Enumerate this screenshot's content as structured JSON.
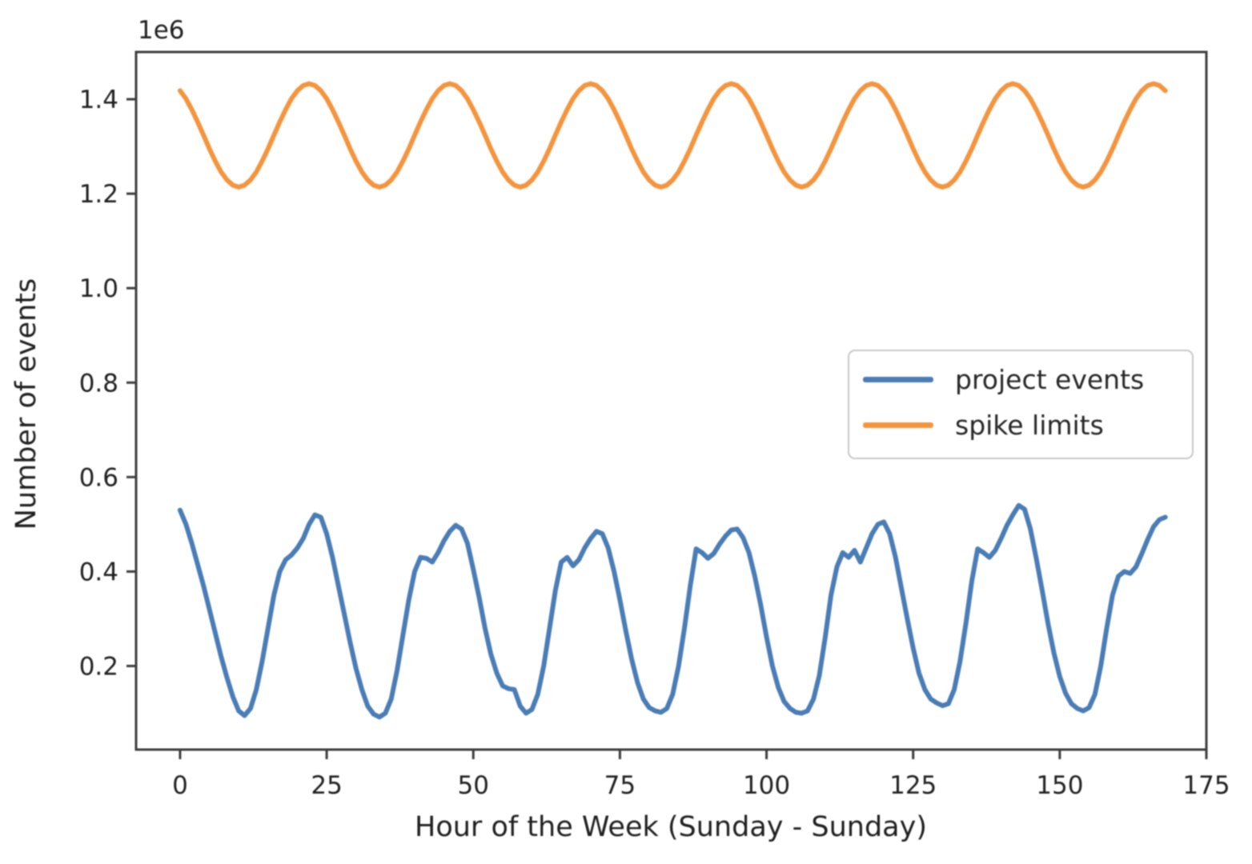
{
  "figure": {
    "offset_label": "1e6",
    "xlabel": "Hour of the Week (Sunday - Sunday)",
    "ylabel": "Number of events"
  },
  "legend": {
    "items": [
      {
        "label": "project events",
        "color": "#4a7db5"
      },
      {
        "label": "spike limits",
        "color": "#f3953f"
      }
    ]
  },
  "chart_data": {
    "type": "line",
    "title": "",
    "xlabel": "Hour of the Week (Sunday - Sunday)",
    "ylabel": "Number of events",
    "y_axis_offset_text": "1e6",
    "y_unit": "millions of events (axis shows value x 1e6)",
    "grid": false,
    "legend_position": "center right",
    "xlim": [
      -7.5,
      175
    ],
    "ylim": [
      0.023,
      1.5
    ],
    "x_ticks": [
      0,
      25,
      50,
      75,
      100,
      125,
      150,
      175
    ],
    "y_tick_values": [
      0.2,
      0.4,
      0.6,
      0.8,
      1.0,
      1.2,
      1.4
    ],
    "y_tick_labels": [
      "0.2",
      "0.4",
      "0.6",
      "0.8",
      "1.0",
      "1.2",
      "1.4"
    ],
    "x_start": 0,
    "x_step": 1,
    "series": [
      {
        "name": "project events",
        "color": "#4a7db5",
        "values": [
          0.53,
          0.5,
          0.46,
          0.415,
          0.37,
          0.32,
          0.27,
          0.22,
          0.175,
          0.135,
          0.105,
          0.095,
          0.11,
          0.15,
          0.21,
          0.28,
          0.35,
          0.4,
          0.425,
          0.435,
          0.45,
          0.47,
          0.5,
          0.52,
          0.515,
          0.48,
          0.43,
          0.37,
          0.31,
          0.25,
          0.195,
          0.15,
          0.115,
          0.098,
          0.092,
          0.1,
          0.13,
          0.19,
          0.265,
          0.34,
          0.4,
          0.43,
          0.428,
          0.42,
          0.44,
          0.465,
          0.485,
          0.498,
          0.49,
          0.46,
          0.405,
          0.345,
          0.28,
          0.225,
          0.185,
          0.158,
          0.152,
          0.15,
          0.115,
          0.1,
          0.108,
          0.14,
          0.2,
          0.28,
          0.36,
          0.42,
          0.43,
          0.412,
          0.425,
          0.45,
          0.47,
          0.485,
          0.48,
          0.45,
          0.4,
          0.34,
          0.275,
          0.215,
          0.165,
          0.13,
          0.112,
          0.105,
          0.102,
          0.11,
          0.14,
          0.2,
          0.28,
          0.37,
          0.448,
          0.44,
          0.428,
          0.438,
          0.458,
          0.475,
          0.488,
          0.49,
          0.472,
          0.44,
          0.39,
          0.33,
          0.262,
          0.2,
          0.155,
          0.125,
          0.11,
          0.102,
          0.1,
          0.105,
          0.13,
          0.18,
          0.26,
          0.35,
          0.41,
          0.44,
          0.43,
          0.445,
          0.42,
          0.45,
          0.48,
          0.5,
          0.505,
          0.48,
          0.43,
          0.365,
          0.3,
          0.238,
          0.185,
          0.15,
          0.13,
          0.122,
          0.116,
          0.12,
          0.15,
          0.21,
          0.29,
          0.38,
          0.448,
          0.44,
          0.43,
          0.445,
          0.47,
          0.498,
          0.52,
          0.54,
          0.532,
          0.49,
          0.428,
          0.36,
          0.29,
          0.228,
          0.178,
          0.142,
          0.12,
          0.11,
          0.105,
          0.112,
          0.14,
          0.2,
          0.28,
          0.35,
          0.39,
          0.4,
          0.396,
          0.41,
          0.438,
          0.468,
          0.495,
          0.51,
          0.515
        ]
      },
      {
        "name": "spike limits",
        "color": "#f3953f",
        "values": [
          1.418,
          1.401,
          1.378,
          1.352,
          1.324,
          1.295,
          1.269,
          1.246,
          1.229,
          1.218,
          1.214,
          1.218,
          1.229,
          1.246,
          1.269,
          1.295,
          1.324,
          1.352,
          1.378,
          1.401,
          1.418,
          1.429,
          1.433,
          1.429,
          1.418,
          1.401,
          1.378,
          1.352,
          1.324,
          1.295,
          1.269,
          1.246,
          1.229,
          1.218,
          1.214,
          1.218,
          1.229,
          1.246,
          1.269,
          1.295,
          1.324,
          1.352,
          1.378,
          1.401,
          1.418,
          1.429,
          1.433,
          1.429,
          1.418,
          1.401,
          1.378,
          1.352,
          1.324,
          1.295,
          1.269,
          1.246,
          1.229,
          1.218,
          1.214,
          1.218,
          1.229,
          1.246,
          1.269,
          1.295,
          1.324,
          1.352,
          1.378,
          1.401,
          1.418,
          1.429,
          1.433,
          1.429,
          1.418,
          1.401,
          1.378,
          1.352,
          1.324,
          1.295,
          1.269,
          1.246,
          1.229,
          1.218,
          1.214,
          1.218,
          1.229,
          1.246,
          1.269,
          1.295,
          1.324,
          1.352,
          1.378,
          1.401,
          1.418,
          1.429,
          1.433,
          1.429,
          1.418,
          1.401,
          1.378,
          1.352,
          1.324,
          1.295,
          1.269,
          1.246,
          1.229,
          1.218,
          1.214,
          1.218,
          1.229,
          1.246,
          1.269,
          1.295,
          1.324,
          1.352,
          1.378,
          1.401,
          1.418,
          1.429,
          1.433,
          1.429,
          1.418,
          1.401,
          1.378,
          1.352,
          1.324,
          1.295,
          1.269,
          1.246,
          1.229,
          1.218,
          1.214,
          1.218,
          1.229,
          1.246,
          1.269,
          1.295,
          1.324,
          1.352,
          1.378,
          1.401,
          1.418,
          1.429,
          1.433,
          1.429,
          1.418,
          1.401,
          1.378,
          1.352,
          1.324,
          1.295,
          1.269,
          1.246,
          1.229,
          1.218,
          1.214,
          1.218,
          1.229,
          1.246,
          1.269,
          1.295,
          1.324,
          1.352,
          1.378,
          1.401,
          1.418,
          1.429,
          1.433,
          1.429,
          1.418
        ]
      }
    ]
  }
}
